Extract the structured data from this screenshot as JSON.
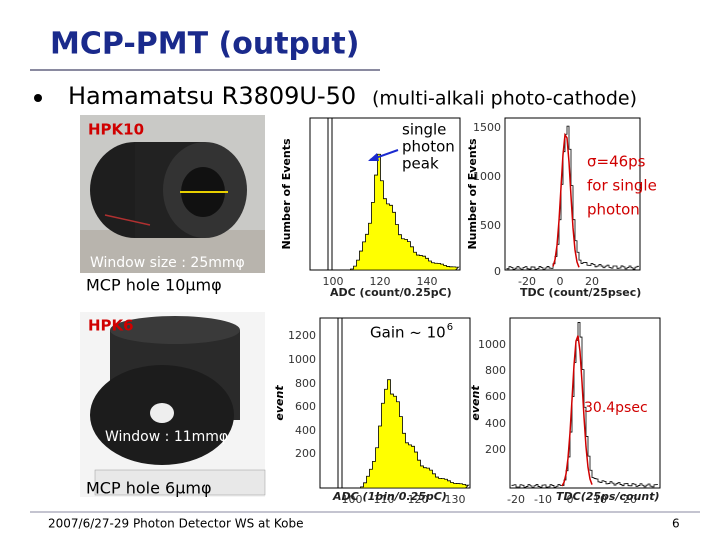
{
  "title": "MCP-PMT (output)",
  "bullet": {
    "main": "Hamamatsu R3809U-50",
    "sub": "(multi-alkali photo-cathode)"
  },
  "hpk10": {
    "label": "HPK10",
    "window": "Window size : 25mmφ",
    "hole": "MCP hole 10μmφ"
  },
  "hpk6": {
    "label": "HPK6",
    "window": "Window : 11mmφ",
    "hole": "MCP hole 6μmφ"
  },
  "plots": [
    {
      "ylabel": "Number of Events",
      "xlabel": "ADC (count/0.25pC)",
      "yticks": [],
      "xticks": [
        "100",
        "120",
        "140"
      ],
      "annotation": [
        "single",
        "photon",
        "peak"
      ]
    },
    {
      "ylabel": "Number of Events",
      "xlabel": "TDC (count/25psec)",
      "yticks": [
        "1500",
        "1000",
        "500",
        "0"
      ],
      "xticks": [
        "-20",
        "0",
        "20"
      ],
      "annotation": [
        "σ=46ps",
        "for single",
        "photon"
      ]
    },
    {
      "ylabel": "event",
      "xlabel": "ADC (1bin/0.25pC)",
      "yticks": [
        "1200",
        "1000",
        "800",
        "600",
        "400",
        "200"
      ],
      "xticks": [
        "100",
        "110",
        "120",
        "130"
      ],
      "annotation": [
        "Gain ~ 10"
      ],
      "exponent": "6"
    },
    {
      "ylabel": "event",
      "xlabel": "TDC(25ps/count)",
      "yticks": [
        "1000",
        "800",
        "600",
        "400",
        "200"
      ],
      "xticks": [
        "-20",
        "-10",
        "0",
        "10",
        "20"
      ],
      "annotation": [
        "30.4psec"
      ]
    }
  ],
  "footer": {
    "left": "2007/6/27-29 Photon Detector WS at Kobe",
    "page": "6"
  }
}
